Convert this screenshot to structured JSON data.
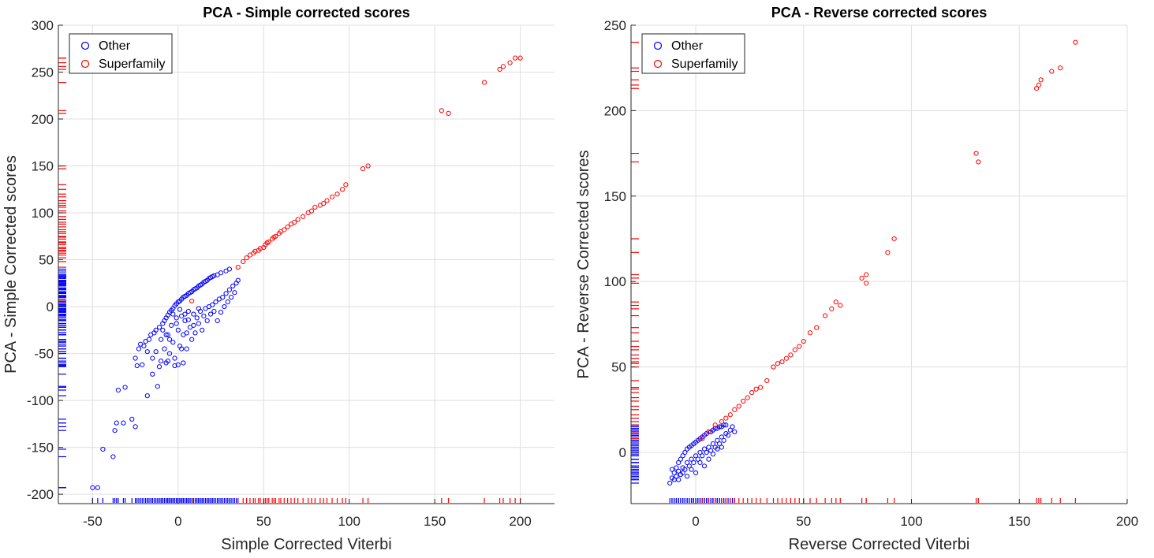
{
  "chart_data": [
    {
      "type": "scatter",
      "title": "PCA - Simple corrected scores",
      "xlabel": "Simple Corrected Viterbi",
      "ylabel": "PCA - Simple Corrected scores",
      "xlim": [
        -70,
        220
      ],
      "ylim": [
        -210,
        300
      ],
      "xticks": [
        -50,
        0,
        50,
        100,
        150,
        200
      ],
      "yticks": [
        -200,
        -150,
        -100,
        -50,
        0,
        50,
        100,
        150,
        200,
        250,
        300
      ],
      "grid": true,
      "legend_position": "top-left",
      "rug_marks": true,
      "series": [
        {
          "name": "Other",
          "color": "#0000ff",
          "points": [
            [
              -50,
              -193
            ],
            [
              -47,
              -193
            ],
            [
              -44,
              -152
            ],
            [
              -38,
              -160
            ],
            [
              -37,
              -132
            ],
            [
              -36,
              -124
            ],
            [
              -35,
              -89
            ],
            [
              -32,
              -124
            ],
            [
              -31,
              -86
            ],
            [
              -27,
              -120
            ],
            [
              -25,
              -128
            ],
            [
              -25,
              -55
            ],
            [
              -24,
              -63
            ],
            [
              -23,
              -45
            ],
            [
              -22,
              -40
            ],
            [
              -21,
              -62
            ],
            [
              -20,
              -42
            ],
            [
              -19,
              -37
            ],
            [
              -18,
              -95
            ],
            [
              -18,
              -48
            ],
            [
              -17,
              -35
            ],
            [
              -16,
              -30
            ],
            [
              -15,
              -72
            ],
            [
              -14,
              -28
            ],
            [
              -13,
              -48
            ],
            [
              -13,
              -25
            ],
            [
              -12,
              -85
            ],
            [
              -11,
              -22
            ],
            [
              -10,
              -58
            ],
            [
              -10,
              -35
            ],
            [
              -9,
              -18
            ],
            [
              -8,
              -45
            ],
            [
              -8,
              -15
            ],
            [
              -7,
              -60
            ],
            [
              -7,
              -12
            ],
            [
              -6,
              -30
            ],
            [
              -6,
              -9
            ],
            [
              -5,
              -50
            ],
            [
              -5,
              -6
            ],
            [
              -4,
              -20
            ],
            [
              -4,
              -4
            ],
            [
              -3,
              -38
            ],
            [
              -3,
              -2
            ],
            [
              -2,
              -55
            ],
            [
              -2,
              1
            ],
            [
              -1,
              -12
            ],
            [
              -1,
              3
            ],
            [
              0,
              -25
            ],
            [
              0,
              5
            ],
            [
              1,
              -42
            ],
            [
              1,
              6
            ],
            [
              2,
              -10
            ],
            [
              2,
              8
            ],
            [
              3,
              -60
            ],
            [
              3,
              -30
            ],
            [
              3,
              10
            ],
            [
              4,
              -15
            ],
            [
              4,
              11
            ],
            [
              5,
              -45
            ],
            [
              5,
              12
            ],
            [
              6,
              -5
            ],
            [
              6,
              14
            ],
            [
              7,
              -22
            ],
            [
              7,
              15
            ],
            [
              8,
              -35
            ],
            [
              8,
              16
            ],
            [
              9,
              -8
            ],
            [
              9,
              18
            ],
            [
              10,
              -28
            ],
            [
              10,
              19
            ],
            [
              11,
              -12
            ],
            [
              11,
              20
            ],
            [
              12,
              -18
            ],
            [
              12,
              22
            ],
            [
              13,
              -5
            ],
            [
              13,
              23
            ],
            [
              14,
              -25
            ],
            [
              14,
              24
            ],
            [
              15,
              -10
            ],
            [
              15,
              26
            ],
            [
              16,
              -2
            ],
            [
              16,
              27
            ],
            [
              17,
              -15
            ],
            [
              17,
              28
            ],
            [
              18,
              0
            ],
            [
              18,
              30
            ],
            [
              19,
              -8
            ],
            [
              19,
              31
            ],
            [
              20,
              2
            ],
            [
              20,
              32
            ],
            [
              21,
              -5
            ],
            [
              21,
              33
            ],
            [
              22,
              5
            ],
            [
              23,
              -15
            ],
            [
              23,
              34
            ],
            [
              24,
              8
            ],
            [
              25,
              -6
            ],
            [
              25,
              36
            ],
            [
              26,
              10
            ],
            [
              27,
              0
            ],
            [
              28,
              14
            ],
            [
              28,
              38
            ],
            [
              29,
              5
            ],
            [
              30,
              18
            ],
            [
              30,
              40
            ],
            [
              31,
              10
            ],
            [
              32,
              22
            ],
            [
              33,
              15
            ],
            [
              34,
              25
            ],
            [
              35,
              28
            ],
            [
              -9,
              -25
            ],
            [
              -7,
              -30
            ],
            [
              -5,
              -35
            ],
            [
              -3,
              -8
            ],
            [
              -1,
              -18
            ],
            [
              1,
              -3
            ],
            [
              4,
              -8
            ],
            [
              6,
              -14
            ],
            [
              9,
              -20
            ],
            [
              12,
              -2
            ],
            [
              -15,
              -55
            ],
            [
              -11,
              -64
            ],
            [
              -6,
              -58
            ],
            [
              -2,
              -63
            ],
            [
              2,
              -45
            ],
            [
              5,
              -28
            ],
            [
              0,
              -62
            ]
          ]
        },
        {
          "name": "Superfamily",
          "color": "#ff0000",
          "points": [
            [
              8,
              6
            ],
            [
              35,
              42
            ],
            [
              38,
              48
            ],
            [
              40,
              52
            ],
            [
              42,
              55
            ],
            [
              44,
              57
            ],
            [
              45,
              59
            ],
            [
              47,
              60
            ],
            [
              48,
              62
            ],
            [
              50,
              63
            ],
            [
              51,
              66
            ],
            [
              52,
              68
            ],
            [
              53,
              69
            ],
            [
              55,
              72
            ],
            [
              56,
              74
            ],
            [
              57,
              75
            ],
            [
              59,
              78
            ],
            [
              60,
              80
            ],
            [
              62,
              82
            ],
            [
              64,
              85
            ],
            [
              66,
              88
            ],
            [
              68,
              90
            ],
            [
              70,
              93
            ],
            [
              73,
              96
            ],
            [
              76,
              100
            ],
            [
              78,
              102
            ],
            [
              80,
              106
            ],
            [
              83,
              108
            ],
            [
              85,
              110
            ],
            [
              87,
              113
            ],
            [
              90,
              117
            ],
            [
              93,
              120
            ],
            [
              96,
              125
            ],
            [
              98,
              130
            ],
            [
              108,
              147
            ],
            [
              111,
              150
            ],
            [
              154,
              209
            ],
            [
              158,
              206
            ],
            [
              179,
              239
            ],
            [
              188,
              253
            ],
            [
              190,
              256
            ],
            [
              194,
              260
            ],
            [
              197,
              265
            ],
            [
              200,
              265
            ]
          ]
        }
      ]
    },
    {
      "type": "scatter",
      "title": "PCA - Reverse corrected scores",
      "xlabel": "Reverse Corrected Viterbi",
      "ylabel": "PCA - Reverse Corrected scores",
      "xlim": [
        -30,
        200
      ],
      "ylim": [
        -30,
        250
      ],
      "xticks": [
        0,
        50,
        100,
        150,
        200
      ],
      "yticks": [
        0,
        50,
        100,
        150,
        200,
        250
      ],
      "grid": true,
      "legend_position": "top-left",
      "rug_marks": true,
      "series": [
        {
          "name": "Other",
          "color": "#0000ff",
          "points": [
            [
              -12,
              -18
            ],
            [
              -11,
              -15
            ],
            [
              -10,
              -16
            ],
            [
              -10,
              -12
            ],
            [
              -9,
              -14
            ],
            [
              -9,
              -9
            ],
            [
              -8,
              -11
            ],
            [
              -8,
              -6
            ],
            [
              -7,
              -13
            ],
            [
              -7,
              -4
            ],
            [
              -6,
              -9
            ],
            [
              -6,
              -2
            ],
            [
              -5,
              -10
            ],
            [
              -5,
              0
            ],
            [
              -4,
              -6
            ],
            [
              -4,
              2
            ],
            [
              -3,
              -8
            ],
            [
              -3,
              3
            ],
            [
              -2,
              -4
            ],
            [
              -2,
              4
            ],
            [
              -1,
              -6
            ],
            [
              -1,
              5
            ],
            [
              0,
              -2
            ],
            [
              0,
              6
            ],
            [
              1,
              -4
            ],
            [
              1,
              7
            ],
            [
              2,
              0
            ],
            [
              2,
              8
            ],
            [
              3,
              -2
            ],
            [
              3,
              9
            ],
            [
              4,
              2
            ],
            [
              4,
              10
            ],
            [
              5,
              0
            ],
            [
              5,
              11
            ],
            [
              6,
              3
            ],
            [
              6,
              12
            ],
            [
              7,
              1
            ],
            [
              7,
              12
            ],
            [
              8,
              5
            ],
            [
              8,
              13
            ],
            [
              9,
              3
            ],
            [
              9,
              14
            ],
            [
              10,
              7
            ],
            [
              10,
              14
            ],
            [
              11,
              5
            ],
            [
              11,
              15
            ],
            [
              12,
              9
            ],
            [
              12,
              15
            ],
            [
              13,
              7
            ],
            [
              13,
              16
            ],
            [
              14,
              11
            ],
            [
              14,
              16
            ],
            [
              15,
              10
            ],
            [
              16,
              13
            ],
            [
              17,
              15
            ],
            [
              18,
              12
            ],
            [
              -11,
              -10
            ],
            [
              -8,
              -16
            ],
            [
              -6,
              -12
            ],
            [
              -4,
              -14
            ],
            [
              -2,
              -10
            ],
            [
              0,
              -12
            ],
            [
              2,
              -6
            ],
            [
              4,
              -8
            ],
            [
              6,
              -4
            ],
            [
              8,
              -1
            ],
            [
              10,
              2
            ],
            [
              12,
              3
            ]
          ]
        },
        {
          "name": "Superfamily",
          "color": "#ff0000",
          "points": [
            [
              3,
              8
            ],
            [
              6,
              12
            ],
            [
              9,
              16
            ],
            [
              12,
              18
            ],
            [
              14,
              20
            ],
            [
              16,
              22
            ],
            [
              18,
              25
            ],
            [
              20,
              27
            ],
            [
              22,
              30
            ],
            [
              24,
              32
            ],
            [
              26,
              35
            ],
            [
              28,
              37
            ],
            [
              30,
              38
            ],
            [
              33,
              42
            ],
            [
              36,
              50
            ],
            [
              38,
              52
            ],
            [
              40,
              53
            ],
            [
              42,
              55
            ],
            [
              44,
              57
            ],
            [
              46,
              60
            ],
            [
              48,
              62
            ],
            [
              50,
              65
            ],
            [
              53,
              70
            ],
            [
              56,
              73
            ],
            [
              60,
              80
            ],
            [
              63,
              84
            ],
            [
              65,
              88
            ],
            [
              67,
              86
            ],
            [
              77,
              102
            ],
            [
              79,
              104
            ],
            [
              79,
              99
            ],
            [
              89,
              117
            ],
            [
              92,
              125
            ],
            [
              130,
              175
            ],
            [
              131,
              170
            ],
            [
              158,
              213
            ],
            [
              159,
              215
            ],
            [
              160,
              218
            ],
            [
              165,
              223
            ],
            [
              169,
              225
            ],
            [
              176,
              240
            ]
          ]
        }
      ]
    }
  ]
}
